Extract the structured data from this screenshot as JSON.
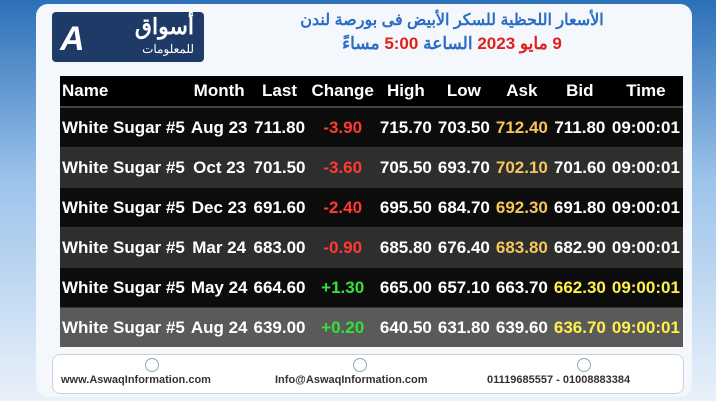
{
  "header": {
    "logo_title": "أسواق",
    "logo_subtitle": "للمعلومات",
    "title": "الأسعار اللحظية للسكر الأبيض فى بورصة لندن",
    "subtitle_parts": [
      "9 مايو 2023",
      "الساعة",
      "5:00",
      "مساءً"
    ]
  },
  "table": {
    "columns": [
      "Name",
      "Month",
      "Last",
      "Change",
      "High",
      "Low",
      "Ask",
      "Bid",
      "Time"
    ],
    "rows": [
      [
        "White Sugar #5",
        "Aug 23",
        "711.80",
        "-3.90",
        "715.70",
        "703.50",
        "712.40",
        "711.80",
        "09:00:01"
      ],
      [
        "White Sugar #5",
        "Oct 23",
        "701.50",
        "-3.60",
        "705.50",
        "693.70",
        "702.10",
        "701.60",
        "09:00:01"
      ],
      [
        "White Sugar #5",
        "Dec 23",
        "691.60",
        "-2.40",
        "695.50",
        "684.70",
        "692.30",
        "691.80",
        "09:00:01"
      ],
      [
        "White Sugar #5",
        "Mar 24",
        "683.00",
        "-0.90",
        "685.80",
        "676.40",
        "683.80",
        "682.90",
        "09:00:01"
      ],
      [
        "White Sugar #5",
        "May 24",
        "664.60",
        "+1.30",
        "665.00",
        "657.10",
        "663.70",
        "662.30",
        "09:00:01"
      ],
      [
        "White Sugar #5",
        "Aug 24",
        "639.00",
        "+0.20",
        "640.50",
        "631.80",
        "639.60",
        "636.70",
        "09:00:01"
      ]
    ]
  },
  "footer": {
    "website": "www.AswaqInformation.com",
    "email": "Info@AswaqInformation.com",
    "phones": "01119685557 - 01008883384"
  }
}
